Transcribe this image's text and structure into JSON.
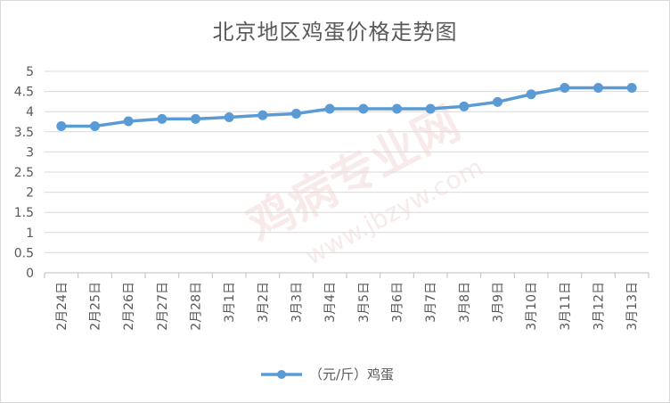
{
  "chart_data": {
    "type": "line",
    "title": "北京地区鸡蛋价格走势图",
    "xlabel": "",
    "ylabel": "",
    "categories": [
      "2月24日",
      "2月25日",
      "2月26日",
      "2月27日",
      "2月28日",
      "3月1日",
      "3月2日",
      "3月3日",
      "3月4日",
      "3月5日",
      "3月6日",
      "3月7日",
      "3月8日",
      "3月9日",
      "3月10日",
      "3月11日",
      "3月12日",
      "3月13日"
    ],
    "series": [
      {
        "name": "（元/斤）鸡蛋",
        "values": [
          3.64,
          3.64,
          3.76,
          3.82,
          3.82,
          3.86,
          3.91,
          3.95,
          4.07,
          4.07,
          4.07,
          4.07,
          4.13,
          4.24,
          4.43,
          4.59,
          4.59,
          4.59
        ],
        "color": "#5b9bd5"
      }
    ],
    "ylim": [
      0,
      5
    ],
    "yticks": [
      "0",
      "0.5",
      "1",
      "1.5",
      "2",
      "2.5",
      "3",
      "3.5",
      "4",
      "4.5",
      "5"
    ],
    "grid": true,
    "legend": "bottom"
  },
  "watermark": {
    "text1": "鸡病专业网",
    "text2": "www.jbzyw.com"
  }
}
